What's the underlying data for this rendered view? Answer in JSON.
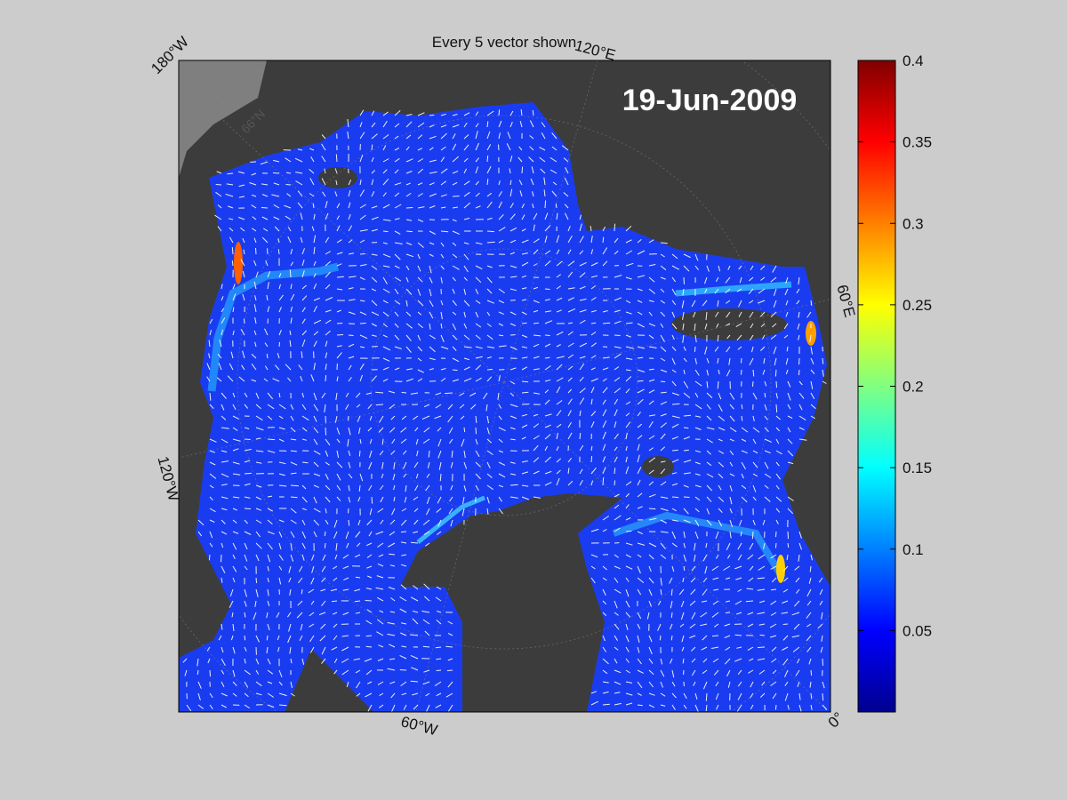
{
  "figure": {
    "title": "Every 5 vector shown",
    "date_stamp": "19-Jun-2009"
  },
  "map": {
    "projection": "north-polar-stereographic",
    "region": "Arctic Ocean",
    "land_color": "#3c3c3c",
    "outer_land_color": "#7f7f7f",
    "background_color": "#cccccc",
    "vector_color": "#ffffff",
    "vector_subsample": 5,
    "longitude_labels": [
      {
        "id": "lon-180w",
        "text": "180°W"
      },
      {
        "id": "lon-120e",
        "text": "120°E"
      },
      {
        "id": "lon-60e",
        "text": "60°E"
      },
      {
        "id": "lon-120w",
        "text": "120°W"
      },
      {
        "id": "lon-60w",
        "text": "60°W"
      },
      {
        "id": "lon-0",
        "text": "0°"
      }
    ],
    "latitude_labels": [
      {
        "id": "lat-66n",
        "text": "66°N"
      }
    ]
  },
  "colorbar": {
    "colormap": "jet",
    "min": 0,
    "max": 0.4,
    "ticks": [
      0.05,
      0.1,
      0.15,
      0.2,
      0.25,
      0.3,
      0.35,
      0.4
    ],
    "tick_labels": [
      "0.05",
      "0.1",
      "0.15",
      "0.2",
      "0.25",
      "0.3",
      "0.35",
      "0.4"
    ],
    "colors": [
      "#00008f",
      "#0000ff",
      "#0080ff",
      "#00ffff",
      "#80ff80",
      "#ffff00",
      "#ff8000",
      "#ff0000",
      "#800000"
    ]
  }
}
